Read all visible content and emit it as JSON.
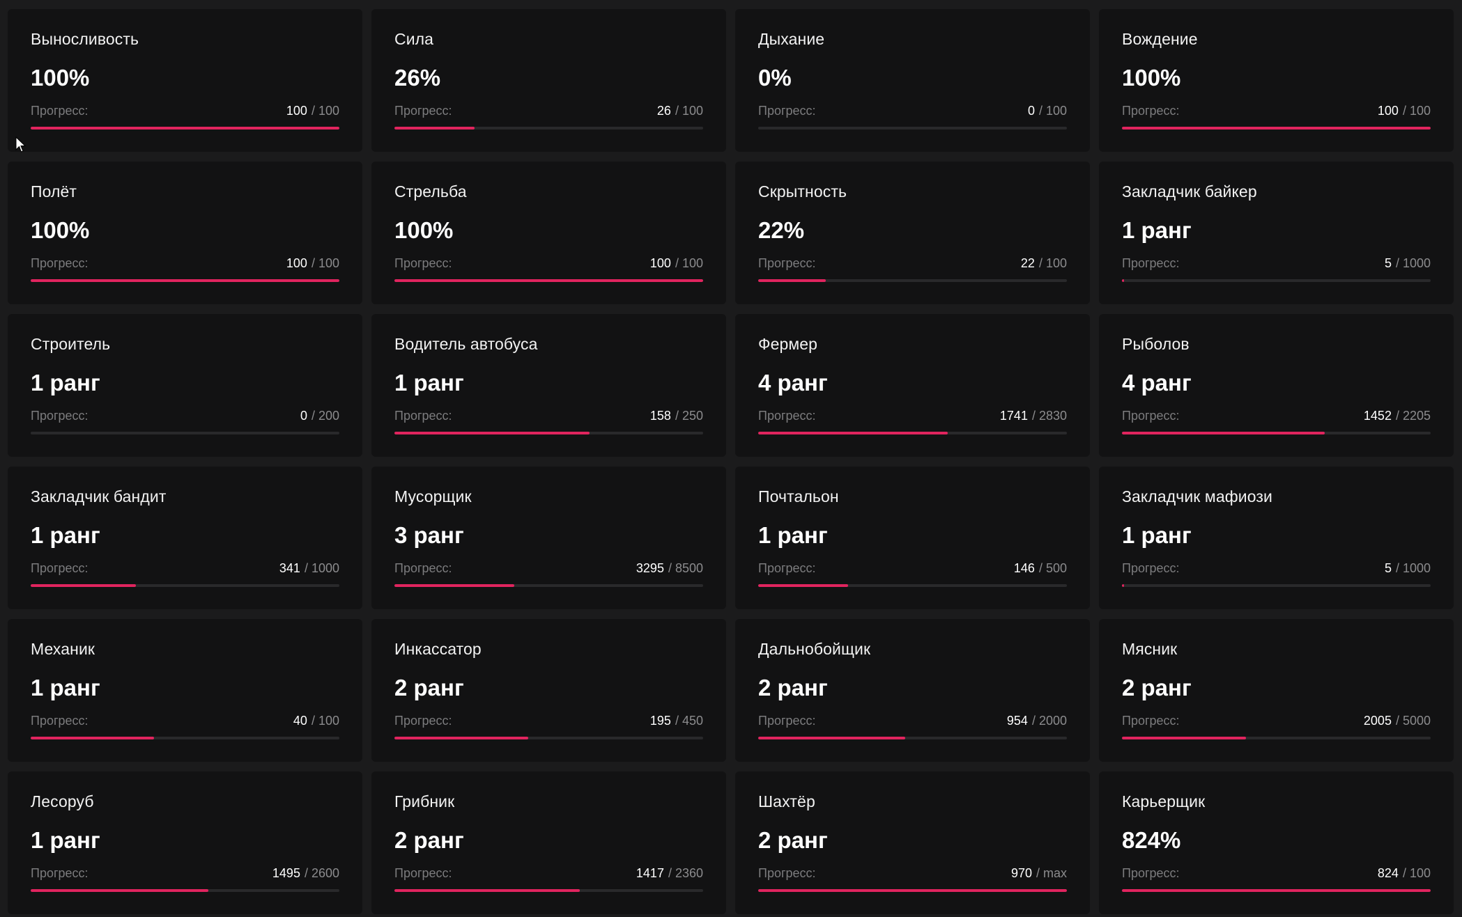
{
  "progress_label": "Прогресс:",
  "accent_color": "#e0245e",
  "skills": [
    {
      "title": "Выносливость",
      "value": "100%",
      "current": "100",
      "total": "/ 100",
      "fill": 1.0
    },
    {
      "title": "Сила",
      "value": "26%",
      "current": "26",
      "total": "/ 100",
      "fill": 0.26
    },
    {
      "title": "Дыхание",
      "value": "0%",
      "current": "0",
      "total": "/ 100",
      "fill": 0.0
    },
    {
      "title": "Вождение",
      "value": "100%",
      "current": "100",
      "total": "/ 100",
      "fill": 1.0
    },
    {
      "title": "Полёт",
      "value": "100%",
      "current": "100",
      "total": "/ 100",
      "fill": 1.0
    },
    {
      "title": "Стрельба",
      "value": "100%",
      "current": "100",
      "total": "/ 100",
      "fill": 1.0
    },
    {
      "title": "Скрытность",
      "value": "22%",
      "current": "22",
      "total": "/ 100",
      "fill": 0.22
    },
    {
      "title": "Закладчик байкер",
      "value": "1 ранг",
      "current": "5",
      "total": "/ 1000",
      "fill": 0.005
    },
    {
      "title": "Строитель",
      "value": "1 ранг",
      "current": "0",
      "total": "/ 200",
      "fill": 0.0
    },
    {
      "title": "Водитель автобуса",
      "value": "1 ранг",
      "current": "158",
      "total": "/ 250",
      "fill": 0.632
    },
    {
      "title": "Фермер",
      "value": "4 ранг",
      "current": "1741",
      "total": "/ 2830",
      "fill": 0.615
    },
    {
      "title": "Рыболов",
      "value": "4 ранг",
      "current": "1452",
      "total": "/ 2205",
      "fill": 0.658
    },
    {
      "title": "Закладчик бандит",
      "value": "1 ранг",
      "current": "341",
      "total": "/ 1000",
      "fill": 0.341
    },
    {
      "title": "Мусорщик",
      "value": "3 ранг",
      "current": "3295",
      "total": "/ 8500",
      "fill": 0.388
    },
    {
      "title": "Почтальон",
      "value": "1 ранг",
      "current": "146",
      "total": "/ 500",
      "fill": 0.292
    },
    {
      "title": "Закладчик мафиози",
      "value": "1 ранг",
      "current": "5",
      "total": "/ 1000",
      "fill": 0.005
    },
    {
      "title": "Механик",
      "value": "1 ранг",
      "current": "40",
      "total": "/ 100",
      "fill": 0.4
    },
    {
      "title": "Инкассатор",
      "value": "2 ранг",
      "current": "195",
      "total": "/ 450",
      "fill": 0.433
    },
    {
      "title": "Дальнобойщик",
      "value": "2 ранг",
      "current": "954",
      "total": "/ 2000",
      "fill": 0.477
    },
    {
      "title": "Мясник",
      "value": "2 ранг",
      "current": "2005",
      "total": "/ 5000",
      "fill": 0.401
    },
    {
      "title": "Лесоруб",
      "value": "1 ранг",
      "current": "1495",
      "total": "/ 2600",
      "fill": 0.575
    },
    {
      "title": "Грибник",
      "value": "2 ранг",
      "current": "1417",
      "total": "/ 2360",
      "fill": 0.6
    },
    {
      "title": "Шахтёр",
      "value": "2 ранг",
      "current": "970",
      "total": "/ max",
      "fill": 1.0
    },
    {
      "title": "Карьерщик",
      "value": "824%",
      "current": "824",
      "total": "/ 100",
      "fill": 1.0
    }
  ]
}
